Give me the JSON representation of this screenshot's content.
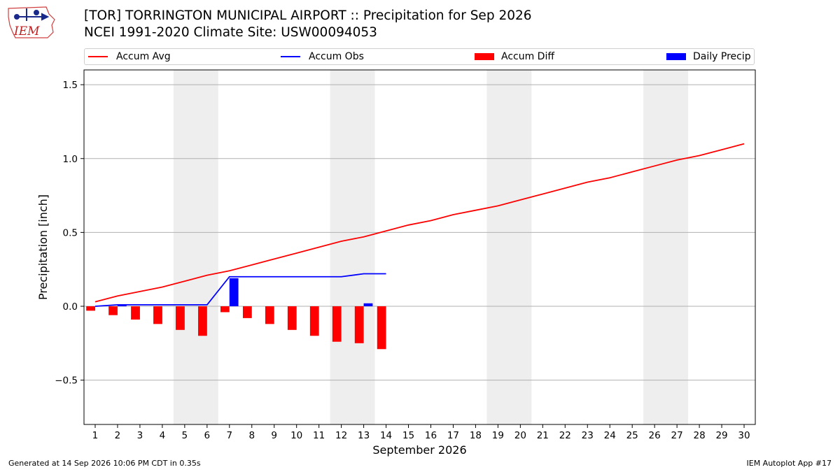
{
  "logo": {
    "text": "IEM",
    "icon": "iem-iowa-map-logo"
  },
  "header": {
    "title_line1": "[TOR] TORRINGTON MUNICIPAL AIRPORT :: Precipitation for Sep 2026",
    "title_line2": "NCEI 1991-2020 Climate Site: USW00094053"
  },
  "legend": {
    "items": [
      {
        "label": "Accum Avg",
        "color": "#ff0000",
        "kind": "line"
      },
      {
        "label": "Accum Obs",
        "color": "#0000ff",
        "kind": "line"
      },
      {
        "label": "Accum Diff",
        "color": "#ff0000",
        "kind": "box"
      },
      {
        "label": "Daily Precip",
        "color": "#0000ff",
        "kind": "box"
      }
    ]
  },
  "footer": {
    "left": "Generated at 14 Sep 2026 10:06 PM CDT in 0.35s",
    "right": "IEM Autoplot App #17"
  },
  "chart_data": {
    "type": "bar",
    "xlabel": "September 2026",
    "ylabel": "Precipitation [inch]",
    "xlim": [
      0.5,
      30.5
    ],
    "ylim": [
      -0.8,
      1.6
    ],
    "yticks": [
      -0.5,
      0.0,
      0.5,
      1.0,
      1.5
    ],
    "ytick_labels": [
      "−0.5",
      "0.0",
      "0.5",
      "1.0",
      "1.5"
    ],
    "x": [
      1,
      2,
      3,
      4,
      5,
      6,
      7,
      8,
      9,
      10,
      11,
      12,
      13,
      14,
      15,
      16,
      17,
      18,
      19,
      20,
      21,
      22,
      23,
      24,
      25,
      26,
      27,
      28,
      29,
      30
    ],
    "weekend_spans": [
      [
        4.5,
        6.5
      ],
      [
        11.5,
        13.5
      ],
      [
        18.5,
        20.5
      ],
      [
        25.5,
        27.5
      ]
    ],
    "grid": "horizontal",
    "legend_placement": "top",
    "series": [
      {
        "name": "Accum Avg",
        "type": "line",
        "color": "#ff0000",
        "x": [
          1,
          2,
          3,
          4,
          5,
          6,
          7,
          8,
          9,
          10,
          11,
          12,
          13,
          14,
          15,
          16,
          17,
          18,
          19,
          20,
          21,
          22,
          23,
          24,
          25,
          26,
          27,
          28,
          29,
          30
        ],
        "values": [
          0.03,
          0.07,
          0.1,
          0.13,
          0.17,
          0.21,
          0.24,
          0.28,
          0.32,
          0.36,
          0.4,
          0.44,
          0.47,
          0.51,
          0.55,
          0.58,
          0.62,
          0.65,
          0.68,
          0.72,
          0.76,
          0.8,
          0.84,
          0.87,
          0.91,
          0.95,
          0.99,
          1.02,
          1.06,
          1.1
        ]
      },
      {
        "name": "Accum Obs",
        "type": "line",
        "color": "#0000ff",
        "x": [
          1,
          2,
          3,
          4,
          5,
          6,
          7,
          8,
          9,
          10,
          11,
          12,
          13,
          14
        ],
        "values": [
          0.0,
          0.01,
          0.01,
          0.01,
          0.01,
          0.01,
          0.2,
          0.2,
          0.2,
          0.2,
          0.2,
          0.2,
          0.22,
          0.22
        ]
      },
      {
        "name": "Accum Diff",
        "type": "bar",
        "color": "#ff0000",
        "offset": -0.2,
        "x": [
          1,
          2,
          3,
          4,
          5,
          6,
          7,
          8,
          9,
          10,
          11,
          12,
          13,
          14
        ],
        "values": [
          -0.03,
          -0.06,
          -0.09,
          -0.12,
          -0.16,
          -0.2,
          -0.04,
          -0.08,
          -0.12,
          -0.16,
          -0.2,
          -0.24,
          -0.25,
          -0.29
        ]
      },
      {
        "name": "Daily Precip",
        "type": "bar",
        "color": "#0000ff",
        "offset": 0.2,
        "x": [
          1,
          2,
          3,
          4,
          5,
          6,
          7,
          8,
          9,
          10,
          11,
          12,
          13,
          14
        ],
        "values": [
          0.0,
          0.01,
          0.0,
          0.0,
          0.0,
          0.0,
          0.19,
          0.0,
          0.0,
          0.0,
          0.0,
          0.0,
          0.02,
          0.0
        ]
      }
    ]
  }
}
